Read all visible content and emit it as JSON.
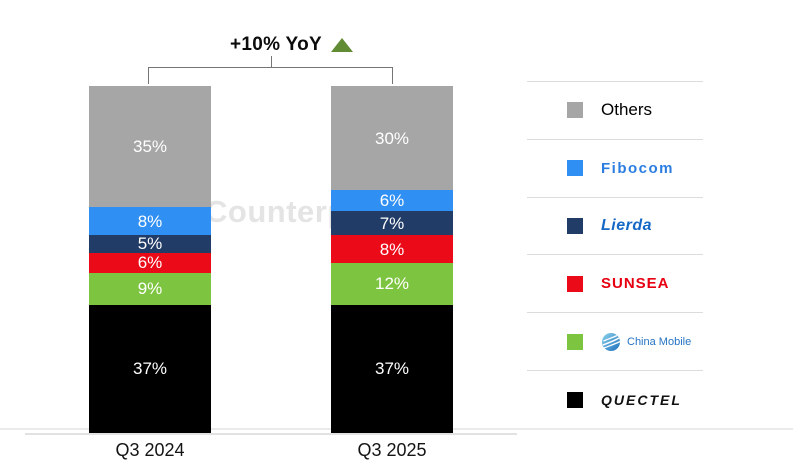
{
  "title": {
    "label": "+10% YoY",
    "arrow_icon": "up-triangle",
    "arrow_color": "#618c33"
  },
  "watermark": {
    "text": "Counterp"
  },
  "chart_data": {
    "type": "bar",
    "subtype": "stacked-percent",
    "categories": [
      "Q3 2024",
      "Q3 2025"
    ],
    "series": [
      {
        "name": "Others",
        "color": "#a6a6a6",
        "values": [
          35,
          30
        ],
        "display": [
          "35%",
          "30%"
        ]
      },
      {
        "name": "Fibocom",
        "color": "#2f8ff2",
        "values": [
          8,
          6
        ],
        "display": [
          "8%",
          "6%"
        ]
      },
      {
        "name": "Lierda",
        "color": "#213c66",
        "values": [
          5,
          7
        ],
        "display": [
          "5%",
          "7%"
        ]
      },
      {
        "name": "SUNSEA",
        "color": "#eb0a17",
        "values": [
          6,
          8
        ],
        "display": [
          "6%",
          "8%"
        ]
      },
      {
        "name": "China Mobile",
        "color": "#7dc540",
        "values": [
          9,
          12
        ],
        "display": [
          "9%",
          "12%"
        ]
      },
      {
        "name": "QUECTEL",
        "color": "#000000",
        "values": [
          37,
          37
        ],
        "display": [
          "37%",
          "37%"
        ]
      }
    ],
    "stack_order": "top-to-bottom",
    "annotation": "+10% YoY",
    "ylim": [
      0,
      100
    ],
    "value_suffix": "%",
    "grid": false,
    "legend_position": "right"
  },
  "legend": {
    "items": [
      {
        "label": "Others",
        "swatch_color": "#a6a6a6",
        "text_color": "#000000"
      },
      {
        "label": "Fibocom",
        "swatch_color": "#2f8ff2",
        "text_color": "#2b7de0"
      },
      {
        "label": "Lierda",
        "swatch_color": "#213c66",
        "text_color": "#1668c7"
      },
      {
        "label": "SUNSEA",
        "swatch_color": "#eb0a17",
        "text_color": "#e60012"
      },
      {
        "label": "China Mobile",
        "swatch_color": "#7dc540",
        "text_color": "#2573c4",
        "icon": "china-mobile-globe-icon"
      },
      {
        "label": "QUECTEL",
        "swatch_color": "#000000",
        "text_color": "#111111"
      }
    ]
  }
}
